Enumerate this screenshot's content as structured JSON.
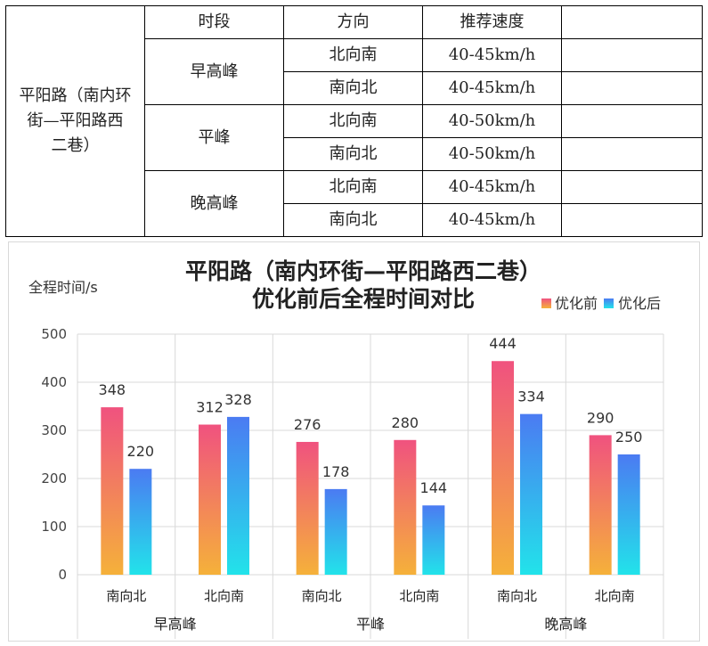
{
  "table": {
    "headers": [
      "时段",
      "方向",
      "推荐速度",
      ""
    ],
    "road": "平阳路（南内环街—平阳路西二巷）",
    "road_lines": [
      "平阳路（南内环",
      "街—平阳路西",
      "二巷）"
    ],
    "periods": [
      {
        "name": "早高峰",
        "rows": [
          {
            "direction": "北向南",
            "speed": "40-45km/h"
          },
          {
            "direction": "南向北",
            "speed": "40-45km/h"
          }
        ]
      },
      {
        "name": "平峰",
        "rows": [
          {
            "direction": "北向南",
            "speed": "40-50km/h"
          },
          {
            "direction": "南向北",
            "speed": "40-50km/h"
          }
        ]
      },
      {
        "name": "晚高峰",
        "rows": [
          {
            "direction": "北向南",
            "speed": "40-45km/h"
          },
          {
            "direction": "南向北",
            "speed": "40-45km/h"
          }
        ]
      }
    ]
  },
  "chart_data": {
    "type": "bar",
    "title": "平阳路（南内环街—平阳路西二巷）",
    "subtitle": "优化前后全程时间对比",
    "ylabel": "全程时间/s",
    "ylim": [
      0,
      500
    ],
    "yticks": [
      0,
      100,
      200,
      300,
      400,
      500
    ],
    "grid": true,
    "legend_position": "top-right",
    "categories": [
      "南向北",
      "北向南",
      "南向北",
      "北向南",
      "南向北",
      "北向南"
    ],
    "groups": [
      {
        "name": "早高峰",
        "span": 2
      },
      {
        "name": "平峰",
        "span": 2
      },
      {
        "name": "晚高峰",
        "span": 2
      }
    ],
    "series": [
      {
        "name": "优化前",
        "values": [
          348,
          312,
          276,
          280,
          444,
          290
        ],
        "colors": [
          "#f0527f",
          "#f5b13a"
        ]
      },
      {
        "name": "优化后",
        "values": [
          220,
          328,
          178,
          144,
          334,
          250
        ],
        "colors": [
          "#4b7bf2",
          "#22e3ea"
        ]
      }
    ]
  }
}
